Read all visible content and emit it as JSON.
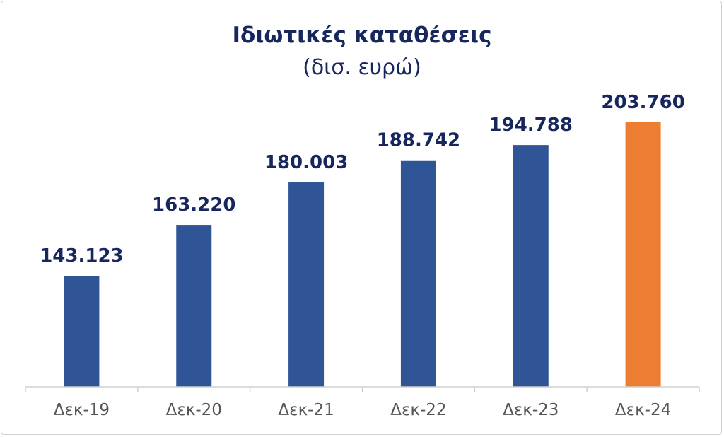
{
  "chart_data": {
    "type": "bar",
    "title": "Ιδιωτικές καταθέσεις",
    "subtitle": "(δισ. ευρώ)",
    "categories": [
      "Δεκ-19",
      "Δεκ-20",
      "Δεκ-21",
      "Δεκ-22",
      "Δεκ-23",
      "Δεκ-24"
    ],
    "values": [
      143123,
      163220,
      180003,
      188742,
      194788,
      203760
    ],
    "data_labels": [
      "143.123",
      "163.220",
      "180.003",
      "188.742",
      "194.788",
      "203.760"
    ],
    "ylim": [
      0,
      220000
    ],
    "grid": false,
    "legend": "none",
    "colors": {
      "default_bar": "#2f5597",
      "highlight_bar": "#ed7d31",
      "text": "#17275e",
      "axis": "#d0d0d0"
    },
    "highlight_index": 5
  }
}
